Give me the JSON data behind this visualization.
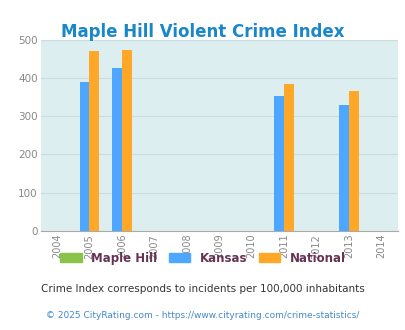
{
  "title": "Maple Hill Violent Crime Index",
  "years": [
    2004,
    2005,
    2006,
    2007,
    2008,
    2009,
    2010,
    2011,
    2012,
    2013,
    2014
  ],
  "bar_years": [
    2005,
    2006,
    2011,
    2013
  ],
  "maple_hill": [
    0,
    0,
    0,
    0
  ],
  "kansas": [
    390,
    425,
    353,
    328
  ],
  "national": [
    470,
    473,
    385,
    365
  ],
  "color_maple_hill": "#8bc34a",
  "color_kansas": "#4da6ff",
  "color_national": "#ffa726",
  "ylim": [
    0,
    500
  ],
  "yticks": [
    0,
    100,
    200,
    300,
    400,
    500
  ],
  "plot_bg": "#ddeef0",
  "title_color": "#1a87c8",
  "legend_labels": [
    "Maple Hill",
    "Kansas",
    "National"
  ],
  "legend_label_color": "#663355",
  "footnote1": "Crime Index corresponds to incidents per 100,000 inhabitants",
  "footnote2": "© 2025 CityRating.com - https://www.cityrating.com/crime-statistics/",
  "footnote2_color": "#4488cc",
  "bar_width": 0.3,
  "grid_color": "#c8dde0"
}
